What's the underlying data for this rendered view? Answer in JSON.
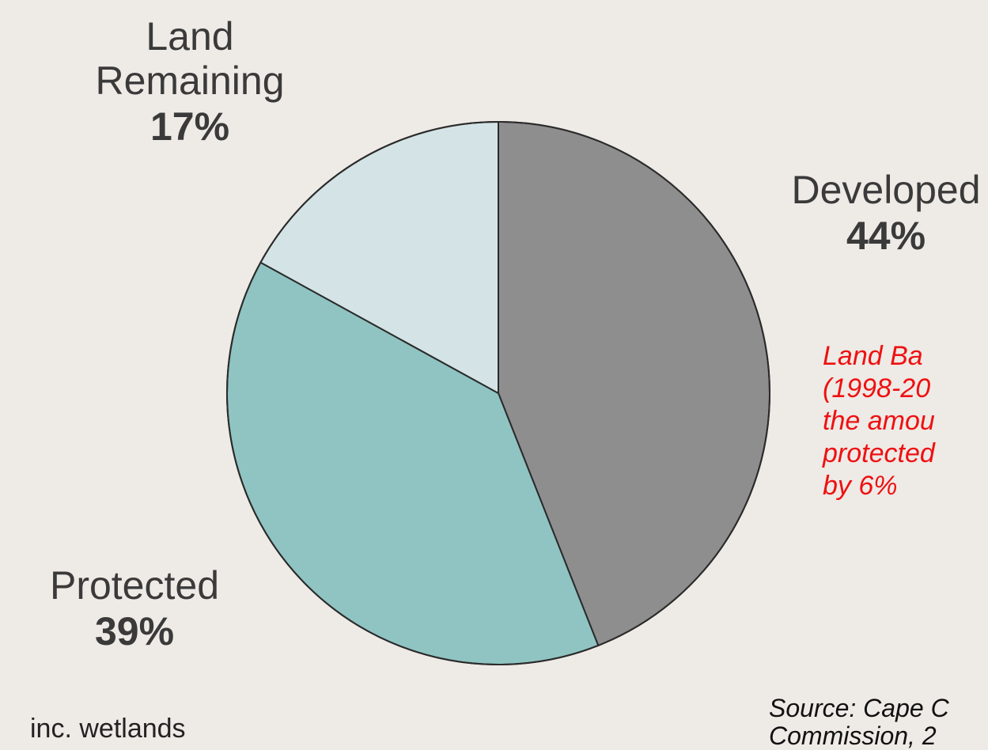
{
  "chart_data": {
    "type": "pie",
    "slices": [
      {
        "label": "Developed",
        "value": 44,
        "display": "44%",
        "color": "#8e8e8e"
      },
      {
        "label": "Protected",
        "value": 39,
        "display": "39%",
        "color": "#8fc4c2"
      },
      {
        "label": "Land Remaining",
        "value": 17,
        "display": "17%",
        "color": "#d4e4e6"
      }
    ],
    "start": "top",
    "direction": "clockwise",
    "annotations": {
      "land_remaining_line1": "Land",
      "land_remaining_line2": "Remaining",
      "protected_sub": "inc. wetlands",
      "note": "Land Ba\n(1998-20\nthe amou\nprotected\nby 6%",
      "source": "Source: Cape C\nCommission, 2"
    }
  },
  "colors": {
    "outline": "#2b2b2b",
    "note": "#ee1111",
    "background": "#eeeae6"
  }
}
